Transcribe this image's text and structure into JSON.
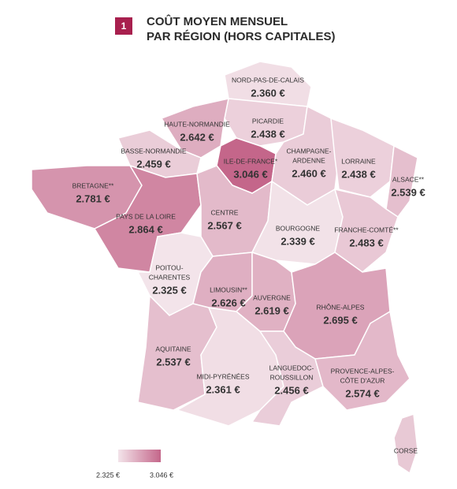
{
  "header": {
    "badge": "1",
    "title": [
      "COÛT MOYEN MENSUEL",
      "PAR RÉGION (HORS CAPITALES)"
    ]
  },
  "legend": {
    "min": {
      "value": 2325,
      "label": "2.325 €"
    },
    "max": {
      "value": 3046,
      "label": "3.046 €"
    }
  },
  "regions": [
    {
      "name": [
        "NORD-PAS-DE-CALAIS"
      ],
      "value": 2360,
      "value_label": "2.360 €"
    },
    {
      "name": [
        "PICARDIE"
      ],
      "value": 2438,
      "value_label": "2.438 €"
    },
    {
      "name": [
        "HAUTE-NORMANDIE"
      ],
      "value": 2642,
      "value_label": "2.642 €"
    },
    {
      "name": [
        "BASSE-NORMANDIE"
      ],
      "value": 2459,
      "value_label": "2.459 €"
    },
    {
      "name": [
        "ILE-DE-FRANCE*"
      ],
      "value": 3046,
      "value_label": "3.046 €"
    },
    {
      "name": [
        "CHAMPAGNE-",
        "ARDENNE"
      ],
      "value": 2460,
      "value_label": "2.460 €"
    },
    {
      "name": [
        "LORRAINE"
      ],
      "value": 2438,
      "value_label": "2.438 €"
    },
    {
      "name": [
        "ALSACE**"
      ],
      "value": 2539,
      "value_label": "2.539 €"
    },
    {
      "name": [
        "BRETAGNE**"
      ],
      "value": 2781,
      "value_label": "2.781 €"
    },
    {
      "name": [
        "PAYS DE LA LOIRE"
      ],
      "value": 2864,
      "value_label": "2.864 €"
    },
    {
      "name": [
        "CENTRE"
      ],
      "value": 2567,
      "value_label": "2.567 €"
    },
    {
      "name": [
        "BOURGOGNE"
      ],
      "value": 2339,
      "value_label": "2.339 €"
    },
    {
      "name": [
        "FRANCHE-COMTÉ**"
      ],
      "value": 2483,
      "value_label": "2.483 €"
    },
    {
      "name": [
        "POITOU-",
        "CHARENTES"
      ],
      "value": 2325,
      "value_label": "2.325 €"
    },
    {
      "name": [
        "LIMOUSIN**"
      ],
      "value": 2626,
      "value_label": "2.626 €"
    },
    {
      "name": [
        "AUVERGNE"
      ],
      "value": 2619,
      "value_label": "2.619 €"
    },
    {
      "name": [
        "RHÔNE-ALPES"
      ],
      "value": 2695,
      "value_label": "2.695 €"
    },
    {
      "name": [
        "AQUITAINE"
      ],
      "value": 2537,
      "value_label": "2.537 €"
    },
    {
      "name": [
        "MIDI-PYRÉNÉES"
      ],
      "value": 2361,
      "value_label": "2.361 €"
    },
    {
      "name": [
        "LANGUEDOC-",
        "ROUSSILLON"
      ],
      "value": 2456,
      "value_label": "2.456 €"
    },
    {
      "name": [
        "PROVENCE-ALPES-",
        "CÔTE D'AZUR"
      ],
      "value": 2574,
      "value_label": "2.574 €"
    },
    {
      "name": [
        "CORSE"
      ]
    }
  ]
}
